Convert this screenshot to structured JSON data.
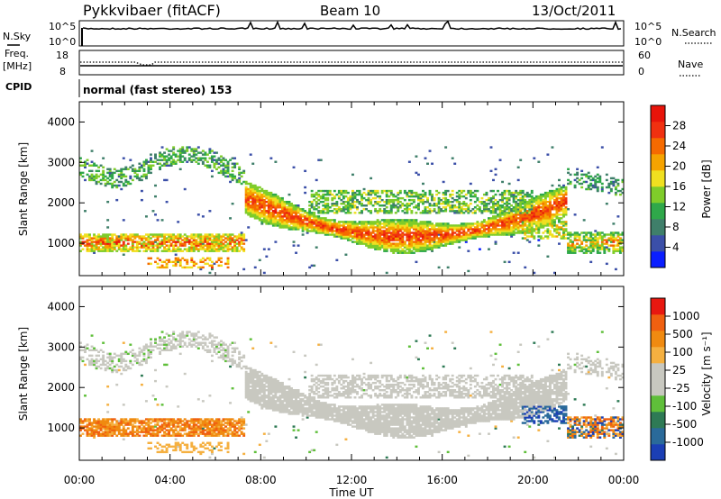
{
  "header": {
    "station": "Pykkvibaer (fitACF)",
    "beam": "Beam 10",
    "date": "13/Oct/2011"
  },
  "strip_labels": {
    "nsky": "N.Sky",
    "nsearch": "N.Search",
    "freq_line1": "Freq.",
    "freq_line2": "[MHz]",
    "nave": "Nave",
    "cpid": "CPID",
    "cpid_value": "normal (fast stereo) 153",
    "nsky_ticks": [
      "10^5",
      "10^0"
    ],
    "nsearch_ticks": [
      "10^5",
      "10^0"
    ],
    "freq_ticks": [
      "18",
      "8"
    ],
    "nave_ticks": [
      "60",
      "0"
    ]
  },
  "colors": {
    "power_scale": [
      "#0a1eff",
      "#3b4fa8",
      "#3f7f6a",
      "#2fa84a",
      "#7fcc2a",
      "#f0e020",
      "#f5a300",
      "#f56a00",
      "#f03010",
      "#e8140a"
    ],
    "velocity_scale": [
      "#1b3fb5",
      "#2a6a9a",
      "#2e7a55",
      "#5fbf3a",
      "#c8c8c0",
      "#c8c8c0",
      "#f5b040",
      "#f08a10",
      "#f06010",
      "#e81810"
    ]
  },
  "chart_data": [
    {
      "type": "heatmap",
      "panel": "power",
      "xlabel": "Time UT",
      "ylabel": "Slant Range [km]",
      "xlim": [
        0,
        24
      ],
      "ylim": [
        200,
        4500
      ],
      "x_ticks": [
        "00:00",
        "04:00",
        "08:00",
        "12:00",
        "16:00",
        "20:00",
        "00:00"
      ],
      "y_ticks": [
        1000,
        2000,
        3000,
        4000
      ],
      "colorbar": {
        "label": "Power [dB]",
        "range": [
          0,
          32
        ],
        "ticks": [
          "28",
          "24",
          "20",
          "16",
          "12",
          "8",
          "4"
        ]
      }
    },
    {
      "type": "heatmap",
      "panel": "velocity",
      "xlabel": "Time UT",
      "ylabel": "Slant Range [km]",
      "xlim": [
        0,
        24
      ],
      "ylim": [
        200,
        4500
      ],
      "x_ticks": [
        "00:00",
        "04:00",
        "08:00",
        "12:00",
        "16:00",
        "20:00",
        "00:00"
      ],
      "y_ticks": [
        1000,
        2000,
        3000,
        4000
      ],
      "colorbar": {
        "label": "Velocity [m s⁻¹]",
        "ticks": [
          "1000",
          "500",
          "100",
          "25",
          "-25",
          "-100",
          "-500",
          "-1000"
        ]
      }
    }
  ]
}
